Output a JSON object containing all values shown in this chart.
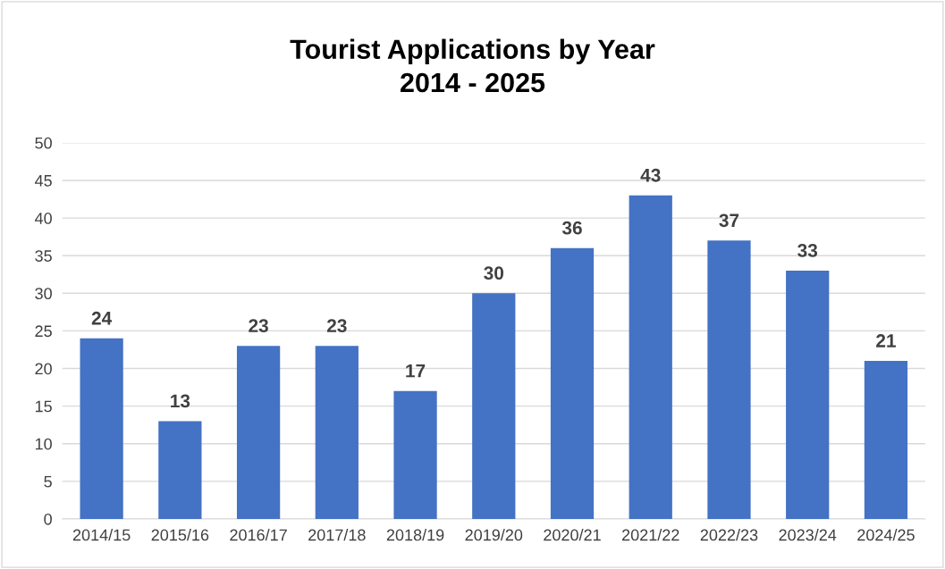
{
  "chart_data": {
    "type": "bar",
    "title": "Tourist Applications by Year\n2014 - 2025",
    "categories": [
      "2014/15",
      "2015/16",
      "2016/17",
      "2017/18",
      "2018/19",
      "2019/20",
      "2020/21",
      "2021/22",
      "2022/23",
      "2023/24",
      "2024/25"
    ],
    "values": [
      24,
      13,
      23,
      23,
      17,
      30,
      36,
      43,
      37,
      33,
      21
    ],
    "color": "#4472c4",
    "ylim": [
      0,
      50
    ],
    "yticks": [
      0,
      5,
      10,
      15,
      20,
      25,
      30,
      35,
      40,
      45,
      50
    ],
    "grid": "y",
    "data_labels": true
  }
}
